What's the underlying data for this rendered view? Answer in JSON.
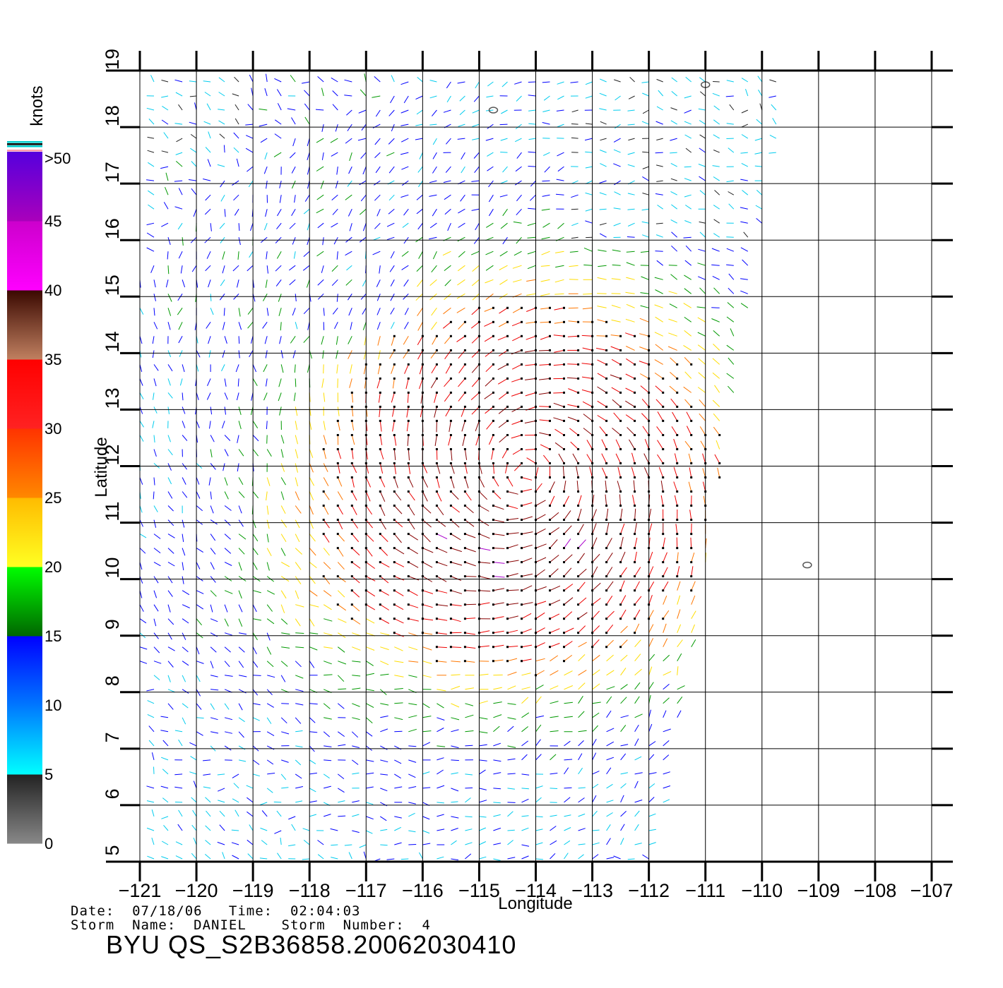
{
  "chart_data": {
    "type": "wind-vector-field",
    "xlabel": "Longitude",
    "ylabel": "Latitude",
    "xlim": [
      -121,
      -107
    ],
    "ylim": [
      5,
      19
    ],
    "x_ticks": [
      -121,
      -120,
      -119,
      -118,
      -117,
      -116,
      -115,
      -114,
      -113,
      -112,
      -111,
      -110,
      -109,
      -108,
      -107
    ],
    "y_ticks": [
      5,
      6,
      7,
      8,
      9,
      10,
      11,
      12,
      13,
      14,
      15,
      16,
      17,
      18,
      19
    ],
    "grid": true,
    "colorbar": {
      "unit": "knots",
      "placement": "left",
      "ticks": [
        "0",
        "5",
        "10",
        "15",
        "20",
        "25",
        "30",
        "35",
        "40",
        "45",
        ">50"
      ],
      "bands": [
        {
          "from": 0,
          "to": 5,
          "colors": [
            "#888888",
            "#222222"
          ]
        },
        {
          "from": 5,
          "to": 10,
          "colors": [
            "#00ffff",
            "#0077ff"
          ]
        },
        {
          "from": 10,
          "to": 15,
          "colors": [
            "#0077ff",
            "#0000ff"
          ]
        },
        {
          "from": 15,
          "to": 20,
          "colors": [
            "#006600",
            "#00ff00"
          ]
        },
        {
          "from": 20,
          "to": 25,
          "colors": [
            "#ffff22",
            "#ffbb00"
          ]
        },
        {
          "from": 25,
          "to": 30,
          "colors": [
            "#ff8800",
            "#ff3300"
          ]
        },
        {
          "from": 30,
          "to": 35,
          "colors": [
            "#ff2222",
            "#ff0000"
          ]
        },
        {
          "from": 35,
          "to": 40,
          "colors": [
            "#c08060",
            "#3a0800"
          ]
        },
        {
          "from": 40,
          "to": 45,
          "colors": [
            "#ff00ff",
            "#cc00cc"
          ]
        },
        {
          "from": 45,
          "to": 50,
          "colors": [
            "#aa00bb",
            "#5500dd"
          ]
        }
      ]
    },
    "storm_center": {
      "lon": -114.2,
      "lat": 11.9
    },
    "swath_edge": [
      [
        -109.5,
        19
      ],
      [
        -111.9,
        5
      ]
    ],
    "islands": [
      {
        "lon": -114.75,
        "lat": 18.3
      },
      {
        "lon": -111,
        "lat": 18.75
      },
      {
        "lon": -109.2,
        "lat": 10.25
      }
    ],
    "speed_colors": {
      "calm": "#222222",
      "light": "#00ccee",
      "low": "#0000ff",
      "moderate": "#009900",
      "fresh": "#ffdd00",
      "strong": "#ff7700",
      "gale": "#ee0000",
      "storm": "#880000",
      "extreme": "#aa00cc"
    }
  },
  "footer": {
    "date_line": "Date:  07/18/06   Time:  02:04:03",
    "storm_line": "Storm  Name:  DANIEL    Storm  Number:  4",
    "file_name": "BYU  QS_S2B36858.20062030410"
  }
}
